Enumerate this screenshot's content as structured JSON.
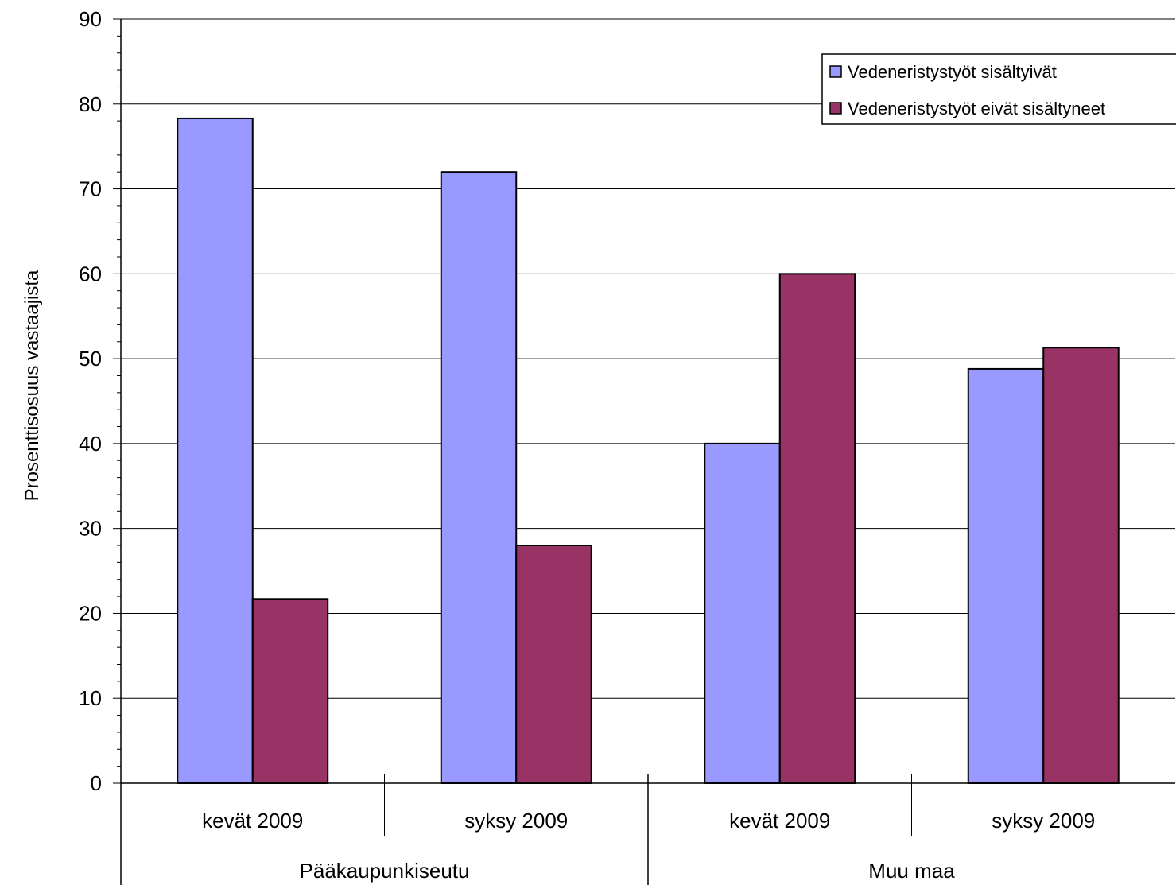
{
  "chart_data": {
    "type": "bar",
    "title": "",
    "ylabel": "Prosenttisosuus vastaajista",
    "xlabel": "",
    "ylim": [
      0,
      90
    ],
    "yticks": [
      0,
      10,
      20,
      30,
      40,
      50,
      60,
      70,
      80,
      90
    ],
    "grid": true,
    "legend_position": "top-right",
    "categories": [
      "kevät 2009",
      "syksy 2009",
      "kevät 2009",
      "syksy 2009"
    ],
    "groups": [
      {
        "label": "Pääkaupunkiseutu",
        "categories": [
          "kevät 2009",
          "syksy 2009"
        ]
      },
      {
        "label": "Muu maa",
        "categories": [
          "kevät 2009",
          "syksy 2009"
        ]
      }
    ],
    "series": [
      {
        "name": "Vedeneristystyöt sisältyivät",
        "color": "#9999ff",
        "values": [
          78.3,
          72.0,
          40.0,
          48.8
        ]
      },
      {
        "name": "Vedeneristystyöt eivät sisältyneet",
        "color": "#993366",
        "values": [
          21.7,
          28.0,
          60.0,
          51.3
        ]
      }
    ]
  }
}
